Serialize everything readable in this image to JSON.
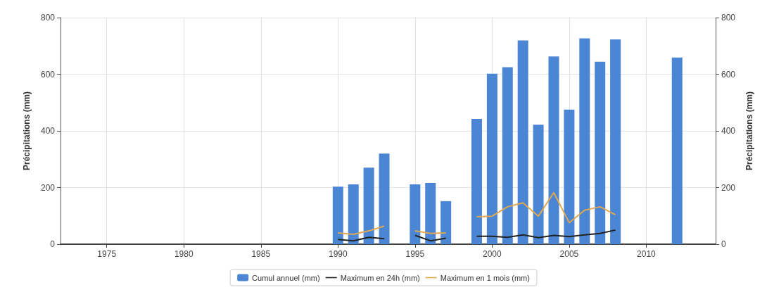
{
  "chart_data": {
    "type": "bar",
    "ylabel": "Précipitations (mm)",
    "y2label": "Précipitations (mm)",
    "x": [
      1990,
      1991,
      1992,
      1993,
      1995,
      1996,
      1997,
      1999,
      2000,
      2001,
      2002,
      2003,
      2004,
      2005,
      2006,
      2007,
      2008,
      2012
    ],
    "series": [
      {
        "name": "Cumul annuel (mm)",
        "color": "#4a86d4",
        "values": [
          203,
          211,
          270,
          320,
          211,
          216,
          152,
          442,
          602,
          625,
          719,
          422,
          663,
          475,
          727,
          644,
          723,
          659
        ]
      },
      {
        "name": "Maximum en 24h (mm)",
        "type": "line",
        "color": "#222222",
        "x": [
          1990,
          1991,
          1992,
          1993,
          1994,
          1995,
          1996,
          1997,
          1998,
          1999,
          2000,
          2001,
          2002,
          2003,
          2004,
          2005,
          2006,
          2007,
          2008
        ],
        "values": [
          17,
          12,
          24,
          19,
          null,
          31,
          12,
          21,
          null,
          28,
          28,
          24,
          33,
          23,
          31,
          27,
          33,
          38,
          50
        ]
      },
      {
        "name": "Maximum en 1 mois (mm)",
        "type": "line",
        "color": "#e0a850",
        "x": [
          1990,
          1991,
          1992,
          1993,
          1994,
          1995,
          1996,
          1997,
          1998,
          1999,
          2000,
          2001,
          2002,
          2003,
          2004,
          2005,
          2006,
          2007,
          2008
        ],
        "values": [
          40,
          35,
          47,
          64,
          null,
          47,
          38,
          40,
          null,
          97,
          99,
          132,
          146,
          99,
          182,
          76,
          120,
          132,
          104
        ]
      }
    ],
    "xlim": [
      1972,
      2014.5
    ],
    "xticks": [
      1975,
      1980,
      1985,
      1990,
      1995,
      2000,
      2005,
      2010
    ],
    "ylim": [
      0,
      800
    ],
    "yticks": [
      0,
      200,
      400,
      600,
      800
    ],
    "y2lim": [
      0,
      800
    ],
    "y2ticks": [
      0,
      200,
      400,
      600,
      800
    ],
    "grid": true,
    "legend": "bottom",
    "marker": "none",
    "line_style": "solid"
  }
}
